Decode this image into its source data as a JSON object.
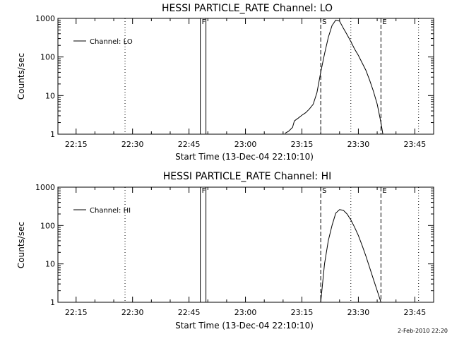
{
  "chart_data": [
    {
      "type": "line",
      "title": "HESSI PARTICLE_RATE Channel: LO",
      "xlabel": "Start Time (13-Dec-04 22:10:10)",
      "ylabel": "Counts/sec",
      "yscale": "log",
      "ylim": [
        1,
        1000
      ],
      "xlim": [
        "22:10:10",
        "23:50:00"
      ],
      "yticks": [
        "1",
        "10",
        "100",
        "1000"
      ],
      "xticks": [
        "22:15",
        "22:30",
        "22:45",
        "23:00",
        "23:15",
        "23:30",
        "23:45"
      ],
      "legend": {
        "label": "Channel: LO",
        "placement": "top-left"
      },
      "markers": [
        {
          "label": "F",
          "times": [
            "22:48",
            "22:49:30"
          ],
          "style": "solid"
        },
        {
          "label": "S",
          "times": [
            "23:20"
          ],
          "style": "dashed"
        },
        {
          "label": "E",
          "times": [
            "23:36"
          ],
          "style": "dashed"
        }
      ],
      "dotted_lines": [
        "22:28",
        "23:28",
        "23:46"
      ],
      "series": [
        {
          "name": "Channel: LO",
          "x": [
            "23:10:30",
            "23:11:30",
            "23:12:30",
            "23:13:00",
            "23:13:30",
            "23:14:00",
            "23:15:00",
            "23:16:00",
            "23:17:00",
            "23:18:00",
            "23:19:00",
            "23:20:00",
            "23:21:00",
            "23:22:00",
            "23:23:00",
            "23:24:00",
            "23:25:00",
            "23:26:00",
            "23:27:00",
            "23:28:00",
            "23:29:00",
            "23:30:00",
            "23:31:00",
            "23:32:00",
            "23:33:00",
            "23:34:00",
            "23:35:00",
            "23:36:00",
            "23:36:30"
          ],
          "y": [
            1.05,
            1.2,
            1.5,
            2.2,
            2.4,
            2.6,
            3.1,
            3.6,
            4.5,
            6,
            12,
            40,
            120,
            320,
            650,
            900,
            850,
            560,
            380,
            250,
            160,
            110,
            70,
            45,
            25,
            13,
            6,
            2,
            1
          ]
        }
      ]
    },
    {
      "type": "line",
      "title": "HESSI PARTICLE_RATE Channel: HI",
      "xlabel": "Start Time (13-Dec-04 22:10:10)",
      "ylabel": "Counts/sec",
      "yscale": "log",
      "ylim": [
        1,
        1000
      ],
      "xlim": [
        "22:10:10",
        "23:50:00"
      ],
      "yticks": [
        "1",
        "10",
        "100",
        "1000"
      ],
      "xticks": [
        "22:15",
        "22:30",
        "22:45",
        "23:00",
        "23:15",
        "23:30",
        "23:45"
      ],
      "legend": {
        "label": "Channel: HI",
        "placement": "top-left"
      },
      "markers": [
        {
          "label": "F",
          "times": [
            "22:48",
            "22:49:30"
          ],
          "style": "solid"
        },
        {
          "label": "S",
          "times": [
            "23:20"
          ],
          "style": "dashed"
        },
        {
          "label": "E",
          "times": [
            "23:36"
          ],
          "style": "dashed"
        }
      ],
      "dotted_lines": [
        "22:28",
        "23:28",
        "23:46"
      ],
      "series": [
        {
          "name": "Channel: HI",
          "x": [
            "23:20:00",
            "23:21:00",
            "23:22:00",
            "23:23:00",
            "23:24:00",
            "23:25:00",
            "23:26:00",
            "23:27:00",
            "23:28:00",
            "23:29:00",
            "23:30:00",
            "23:31:00",
            "23:32:00",
            "23:33:00",
            "23:34:00",
            "23:35:00",
            "23:36:00"
          ],
          "y": [
            1,
            10,
            40,
            100,
            210,
            260,
            250,
            200,
            140,
            90,
            55,
            30,
            16,
            8,
            4,
            2,
            1
          ]
        }
      ]
    }
  ],
  "footer": {
    "timestamp": "2-Feb-2010 22:20"
  }
}
